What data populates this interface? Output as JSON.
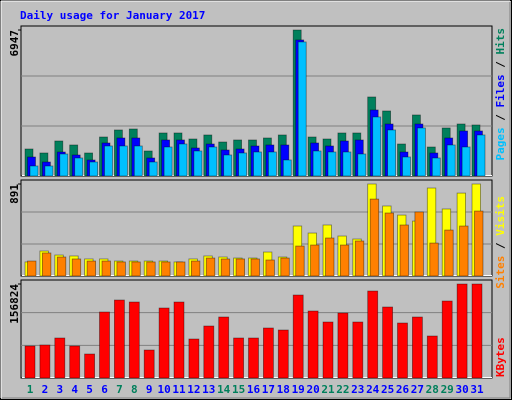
{
  "chart_data": [
    {
      "type": "bar",
      "title": "Daily usage for January 2017",
      "legend_separator": " / ",
      "ylim": [
        0,
        6947
      ],
      "yticks": [
        6947
      ],
      "series": [
        {
          "name": "Hits",
          "color": "#00805c",
          "values": [
            1285,
            1095,
            1666,
            1476,
            1095,
            1856,
            2190,
            2237,
            1190,
            2047,
            2047,
            1761,
            1952,
            1618,
            1714,
            1714,
            1809,
            1952,
            6947,
            1856,
            1761,
            2047,
            2047,
            3760,
            3094,
            1523,
            2904,
            1380,
            2285,
            2475,
            2428
          ]
        },
        {
          "name": "Files",
          "color": "#0000ff",
          "values": [
            904,
            666,
            1142,
            1000,
            762,
            1571,
            1809,
            1809,
            857,
            1714,
            1714,
            1333,
            1523,
            1238,
            1285,
            1428,
            1476,
            1476,
            6474,
            1571,
            1428,
            1666,
            1714,
            3142,
            2475,
            1142,
            2475,
            1095,
            1809,
            2142,
            2142
          ]
        },
        {
          "name": "Pages",
          "color": "#00c0ff",
          "values": [
            476,
            476,
            1047,
            857,
            666,
            1428,
            1428,
            1428,
            666,
            1380,
            1523,
            1190,
            1380,
            1000,
            1095,
            1142,
            1142,
            762,
            6378,
            1190,
            1142,
            1142,
            1047,
            2808,
            2190,
            904,
            2285,
            857,
            1476,
            1380,
            1952
          ]
        }
      ]
    },
    {
      "type": "bar",
      "legend_separator": " / ",
      "ylim": [
        0,
        891
      ],
      "yticks": [
        891
      ],
      "series": [
        {
          "name": "Visits",
          "color": "#ffff00",
          "values": [
            136,
            242,
            203,
            194,
            165,
            165,
            145,
            145,
            145,
            145,
            136,
            165,
            194,
            184,
            174,
            174,
            232,
            184,
            484,
            416,
            494,
            387,
            358,
            891,
            678,
            590,
            532,
            852,
            649,
            803,
            891
          ]
        },
        {
          "name": "Sites",
          "color": "#ff8000",
          "values": [
            145,
            223,
            184,
            165,
            145,
            145,
            136,
            136,
            136,
            136,
            136,
            145,
            174,
            165,
            165,
            165,
            155,
            174,
            290,
            300,
            368,
            300,
            339,
            745,
            610,
            494,
            620,
            319,
            445,
            484,
            629
          ]
        }
      ]
    },
    {
      "type": "bar",
      "ylim": [
        0,
        156824
      ],
      "yticks": [
        156824
      ],
      "series": [
        {
          "name": "KBytes",
          "color": "#ff0000",
          "values": [
            53376,
            55044,
            66720,
            53376,
            40032,
            110088,
            130104,
            126768,
            46704,
            116760,
            126768,
            65052,
            86736,
            101748,
            66720,
            66720,
            83400,
            80064,
            138444,
            111756,
            93408,
            108420,
            93408,
            145116,
            118428,
            91740,
            101748,
            70056,
            128436,
            156824,
            156824
          ]
        }
      ],
      "categories": [
        "1",
        "2",
        "3",
        "4",
        "5",
        "6",
        "7",
        "8",
        "9",
        "10",
        "11",
        "12",
        "13",
        "14",
        "15",
        "16",
        "17",
        "18",
        "19",
        "20",
        "21",
        "22",
        "23",
        "24",
        "25",
        "26",
        "27",
        "28",
        "29",
        "30",
        "31"
      ],
      "category_colors": [
        "#00805c",
        "#0000ff",
        "#0000ff",
        "#0000ff",
        "#0000ff",
        "#0000ff",
        "#00805c",
        "#00805c",
        "#0000ff",
        "#0000ff",
        "#0000ff",
        "#0000ff",
        "#0000ff",
        "#00805c",
        "#00805c",
        "#0000ff",
        "#0000ff",
        "#0000ff",
        "#0000ff",
        "#0000ff",
        "#00805c",
        "#00805c",
        "#0000ff",
        "#0000ff",
        "#0000ff",
        "#0000ff",
        "#0000ff",
        "#00805c",
        "#00805c",
        "#0000ff",
        "#0000ff"
      ]
    }
  ]
}
